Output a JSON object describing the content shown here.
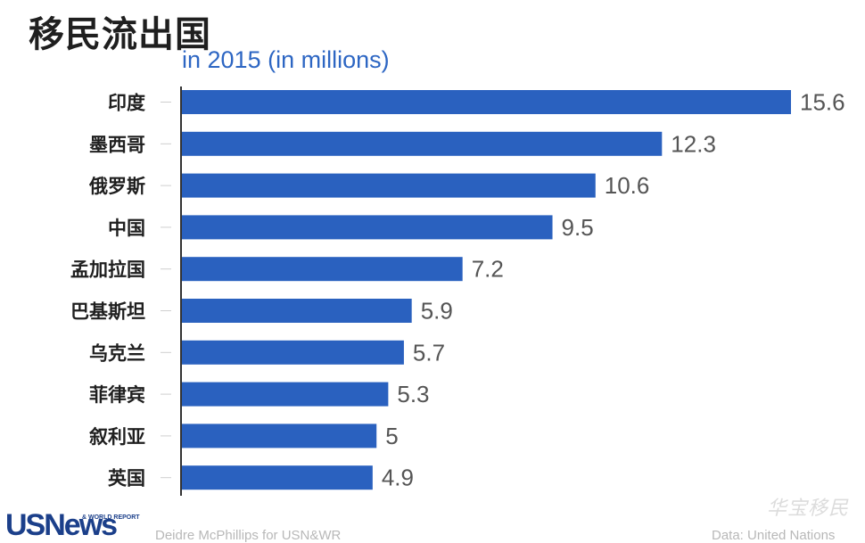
{
  "header": {
    "title": "移民流出国",
    "subtitle": "in 2015 (in millions)"
  },
  "footer": {
    "logo_text": "USNews",
    "logo_small": "& WORLD REPORT",
    "credit": "Deidre McPhillips for USN&WR",
    "source": "Data: United Nations",
    "watermark": "华宝移民"
  },
  "colors": {
    "bar": "#2a61bf",
    "subtitle": "#2d66c3",
    "axis": "#333333"
  },
  "chart_data": {
    "type": "bar",
    "orientation": "horizontal",
    "title": "移民流出国",
    "subtitle": "in 2015 (in millions)",
    "categories": [
      "印度",
      "墨西哥",
      "俄罗斯",
      "中国",
      "孟加拉国",
      "巴基斯坦",
      "乌克兰",
      "菲律宾",
      "叙利亚",
      "英国"
    ],
    "values": [
      15.6,
      12.3,
      10.6,
      9.5,
      7.2,
      5.9,
      5.7,
      5.3,
      5,
      4.9
    ],
    "value_labels": [
      "15.6",
      "12.3",
      "10.6",
      "9.5",
      "7.2",
      "5.9",
      "5.7",
      "5.3",
      "5",
      "4.9"
    ],
    "xlim": [
      0,
      15.6
    ],
    "grid": false,
    "legend": "none"
  }
}
